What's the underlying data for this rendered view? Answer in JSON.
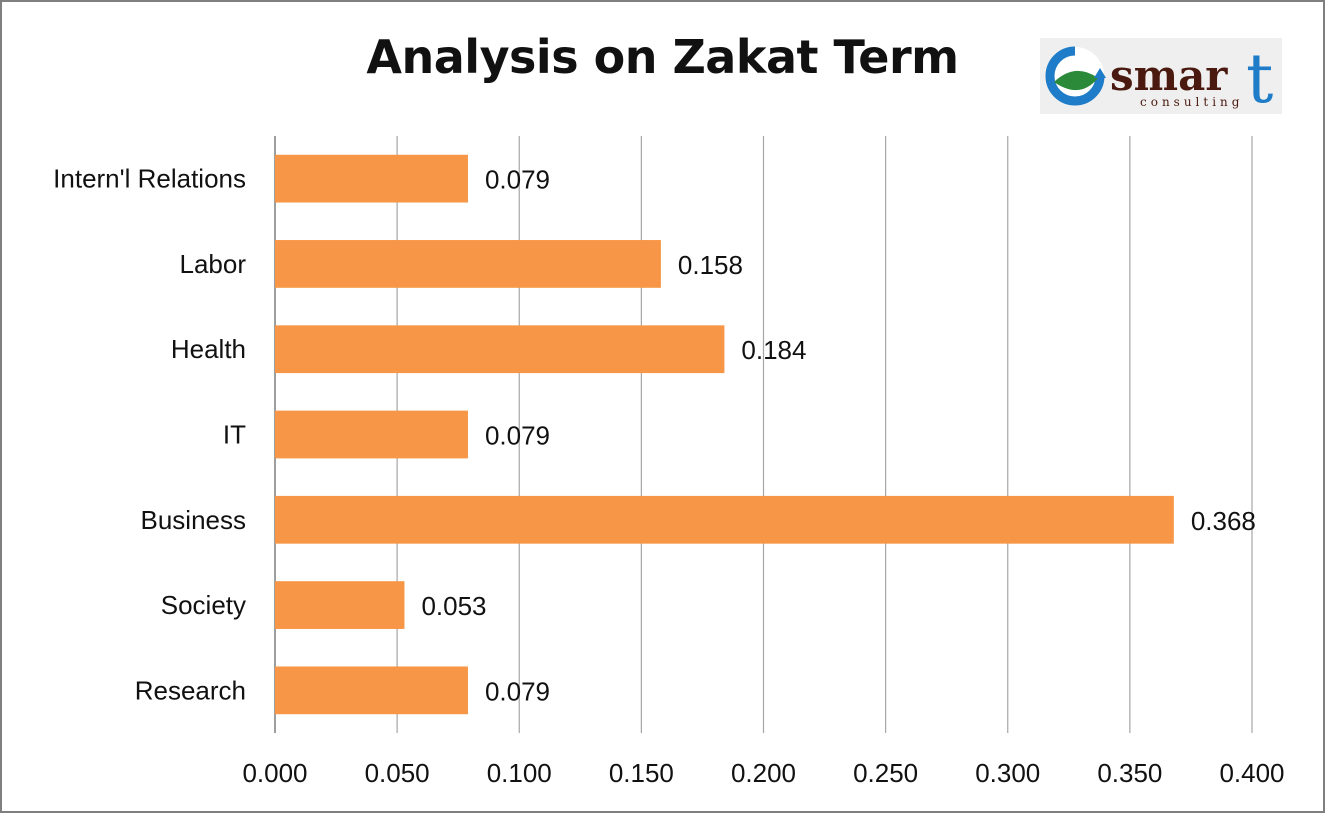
{
  "chart_data": {
    "type": "bar",
    "orientation": "horizontal",
    "title": "Analysis on Zakat Term",
    "categories": [
      "Intern'l Relations",
      "Labor",
      "Health",
      "IT",
      "Business",
      "Society",
      "Research"
    ],
    "values": [
      0.079,
      0.158,
      0.184,
      0.079,
      0.368,
      0.053,
      0.079
    ],
    "data_labels": [
      "0.079",
      "0.158",
      "0.184",
      "0.079",
      "0.368",
      "0.053",
      "0.079"
    ],
    "xlim": [
      0,
      0.4
    ],
    "x_ticks": [
      0,
      0.05,
      0.1,
      0.15,
      0.2,
      0.25,
      0.3,
      0.35,
      0.4
    ],
    "x_tick_labels": [
      "0.000",
      "0.050",
      "0.100",
      "0.150",
      "0.200",
      "0.250",
      "0.300",
      "0.350",
      "0.400"
    ],
    "xlabel": "",
    "ylabel": "",
    "grid": "vertical",
    "legend": "none",
    "bar_color": "#F79646",
    "grid_color": "#A6A6A6"
  },
  "logo": {
    "text_main": "smar",
    "text_tail": "t",
    "text_sub": "consulting",
    "ring_color": "#1e7cc8",
    "leaf_color": "#2a8a3a",
    "text_color": "#4a1a10",
    "tail_color": "#1e7cc8"
  }
}
